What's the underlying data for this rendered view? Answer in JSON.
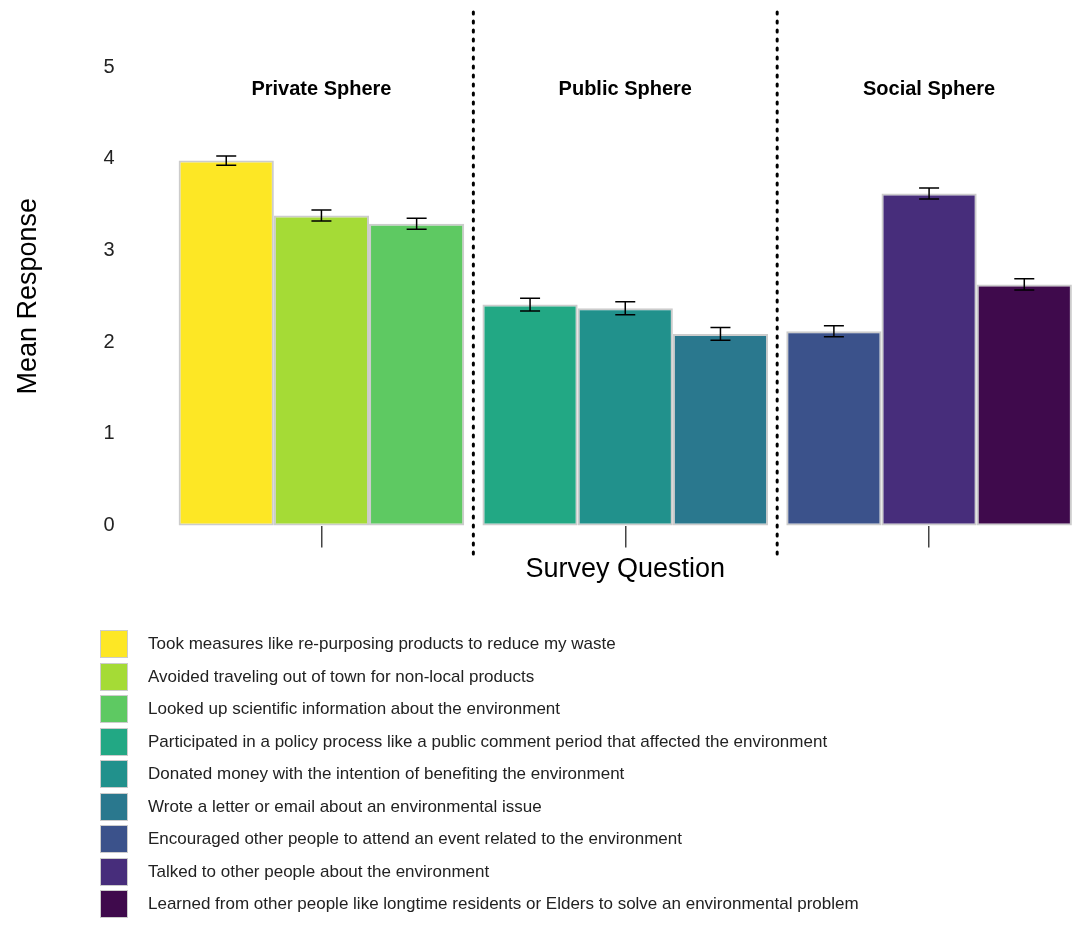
{
  "chart_data": {
    "type": "bar",
    "xlabel": "Survey Question",
    "ylabel": "Mean Response",
    "categories": [
      "Private Sphere",
      "Public Sphere",
      "Social Sphere"
    ],
    "series": [
      {
        "name": "Took measures like re-purposing products to reduce my waste",
        "color": "#fde725",
        "values": [
          3.98,
          null,
          null
        ],
        "errors": [
          0.05,
          null,
          null
        ]
      },
      {
        "name": "Avoided traveling out of town for non-local products",
        "color": "#a5db36",
        "values": [
          3.38,
          null,
          null
        ],
        "errors": [
          0.06,
          null,
          null
        ]
      },
      {
        "name": "Looked up scientific information about the environment",
        "color": "#5ec962",
        "values": [
          3.29,
          null,
          null
        ],
        "errors": [
          0.06,
          null,
          null
        ]
      },
      {
        "name": "Participated in a policy process like a public comment period that affected the environment",
        "color": "#22a884",
        "values": [
          null,
          2.41,
          null
        ],
        "errors": [
          null,
          0.07,
          null
        ]
      },
      {
        "name": "Donated money with the intention of benefiting the environment",
        "color": "#21918c",
        "values": [
          null,
          2.37,
          null
        ],
        "errors": [
          null,
          0.07,
          null
        ]
      },
      {
        "name": "Wrote a letter or email about an environmental issue",
        "color": "#2a788e",
        "values": [
          null,
          2.09,
          null
        ],
        "errors": [
          null,
          0.07,
          null
        ]
      },
      {
        "name": "Encouraged other people to attend an event related to the environment",
        "color": "#3b528b",
        "values": [
          null,
          null,
          2.12
        ],
        "errors": [
          null,
          null,
          0.06
        ]
      },
      {
        "name": "Talked to other people about the environment",
        "color": "#472d7b",
        "values": [
          null,
          null,
          3.62
        ],
        "errors": [
          null,
          null,
          0.06
        ]
      },
      {
        "name": "Learned from other people like longtime residents or Elders to solve an environmental problem",
        "color": "#3f0a4c",
        "values": [
          null,
          null,
          2.63
        ],
        "errors": [
          null,
          null,
          0.06
        ]
      }
    ],
    "ylim": [
      0,
      5
    ],
    "yticks": [
      0,
      1,
      2,
      3,
      4,
      5
    ],
    "grid": false,
    "legend": "bottom",
    "tick_labels": "y"
  }
}
